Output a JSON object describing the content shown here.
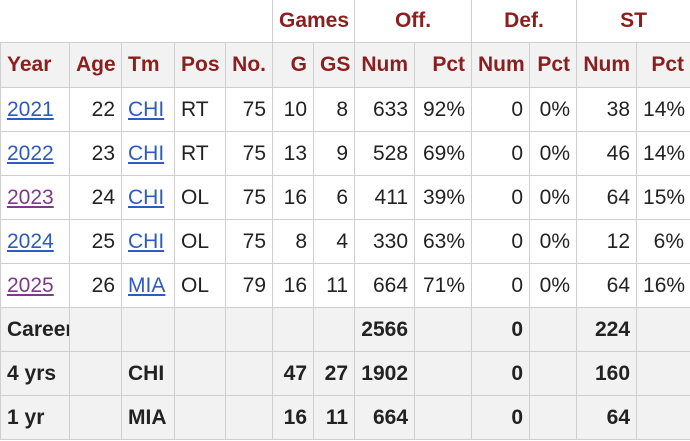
{
  "over_headers": {
    "games": "Games",
    "off": "Off.",
    "def": "Def.",
    "st": "ST"
  },
  "headers": [
    "Year",
    "Age",
    "Tm",
    "Pos",
    "No.",
    "G",
    "GS",
    "Num",
    "Pct",
    "Num",
    "Pct",
    "Num",
    "Pct"
  ],
  "rows": [
    {
      "year": "2021",
      "age": "22",
      "tm": "CHI",
      "pos": "RT",
      "no": "75",
      "g": "10",
      "gs": "8",
      "off_num": "633",
      "off_pct": "92%",
      "def_num": "0",
      "def_pct": "0%",
      "st_num": "38",
      "st_pct": "14%"
    },
    {
      "year": "2022",
      "age": "23",
      "tm": "CHI",
      "pos": "RT",
      "no": "75",
      "g": "13",
      "gs": "9",
      "off_num": "528",
      "off_pct": "69%",
      "def_num": "0",
      "def_pct": "0%",
      "st_num": "46",
      "st_pct": "14%"
    },
    {
      "year": "2023",
      "age": "24",
      "tm": "CHI",
      "pos": "OL",
      "no": "75",
      "g": "16",
      "gs": "6",
      "off_num": "411",
      "off_pct": "39%",
      "def_num": "0",
      "def_pct": "0%",
      "st_num": "64",
      "st_pct": "15%"
    },
    {
      "year": "2024",
      "age": "25",
      "tm": "CHI",
      "pos": "OL",
      "no": "75",
      "g": "8",
      "gs": "4",
      "off_num": "330",
      "off_pct": "63%",
      "def_num": "0",
      "def_pct": "0%",
      "st_num": "12",
      "st_pct": "6%"
    },
    {
      "year": "2025",
      "age": "26",
      "tm": "MIA",
      "pos": "OL",
      "no": "79",
      "g": "16",
      "gs": "11",
      "off_num": "664",
      "off_pct": "71%",
      "def_num": "0",
      "def_pct": "0%",
      "st_num": "64",
      "st_pct": "16%"
    }
  ],
  "summary": [
    {
      "label": "Career",
      "tm": "",
      "g": "",
      "gs": "",
      "off_num": "2566",
      "def_num": "0",
      "st_num": "224"
    },
    {
      "label": "4 yrs",
      "tm": "CHI",
      "g": "47",
      "gs": "27",
      "off_num": "1902",
      "def_num": "0",
      "st_num": "160"
    },
    {
      "label": "1 yr",
      "tm": "MIA",
      "g": "16",
      "gs": "11",
      "off_num": "664",
      "def_num": "0",
      "st_num": "64"
    }
  ],
  "colors": {
    "header_text": "#8b1f1f",
    "link": "#2d5bbf",
    "visited_link": "#7b3b89",
    "header_bg": "#f2f2f2"
  }
}
